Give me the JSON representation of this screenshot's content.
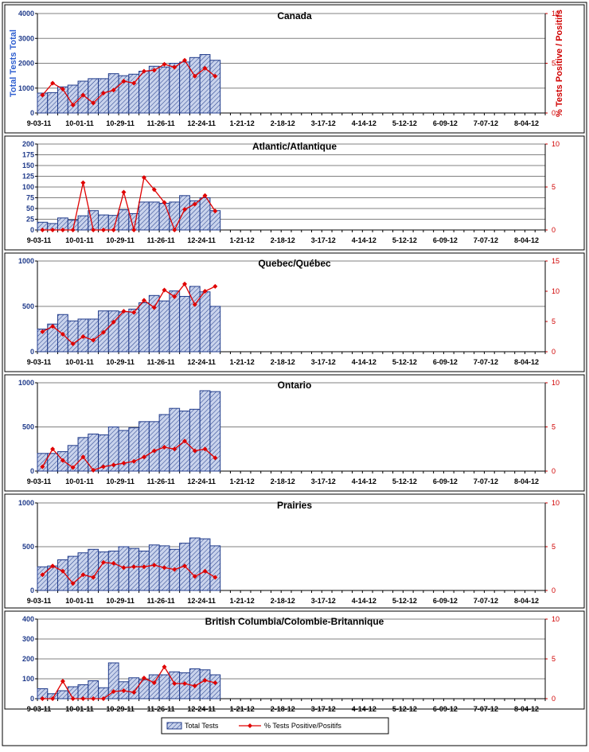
{
  "colors": {
    "bar_fill": "#c9d3ec",
    "bar_stroke": "#1f3a8a",
    "line": "#e00000",
    "left_axis_text": "#1f3a8a",
    "left_axis_title": "#2f5fd0",
    "right_axis": "#d00000"
  },
  "x_tick_labels": [
    "9-03-11",
    "10-01-11",
    "10-29-11",
    "11-26-11",
    "12-24-11",
    "1-21-12",
    "2-18-12",
    "3-17-12",
    "4-14-12",
    "5-12-12",
    "6-09-12",
    "7-07-12",
    "8-04-12"
  ],
  "legend": {
    "bars": "Total Tests",
    "line": "% Tests Positive/Positifs"
  },
  "chart_data": [
    {
      "type": "bar",
      "title": "Canada",
      "ylabel": "Total Tests Total",
      "y2label": "% Tests Positive / Positifs",
      "ylim": [
        0,
        4000
      ],
      "yticks": [
        0,
        1000,
        2000,
        3000,
        4000
      ],
      "y2lim": [
        0,
        10
      ],
      "y2ticks": [
        0,
        5,
        10
      ],
      "series": [
        {
          "name": "Total Tests",
          "kind": "bar",
          "axis": "left",
          "values": [
            800,
            820,
            1050,
            1120,
            1280,
            1380,
            1380,
            1580,
            1500,
            1560,
            1680,
            1880,
            1850,
            2000,
            2050,
            2230,
            2350,
            2120
          ]
        },
        {
          "name": "% Tests Positive/Positifs",
          "kind": "line",
          "axis": "right",
          "values": [
            1.8,
            3.0,
            2.4,
            0.8,
            1.8,
            1.0,
            2.0,
            2.3,
            3.2,
            3.0,
            4.2,
            4.3,
            4.9,
            4.6,
            5.3,
            3.7,
            4.5,
            3.7
          ]
        }
      ],
      "grid": true
    },
    {
      "type": "bar",
      "title": "Atlantic/Atlantique",
      "ylim": [
        0,
        200
      ],
      "yticks": [
        0,
        25,
        50,
        75,
        100,
        125,
        150,
        175,
        200
      ],
      "y2lim": [
        0,
        10
      ],
      "y2ticks": [
        0,
        5,
        10
      ],
      "series": [
        {
          "name": "Total Tests",
          "kind": "bar",
          "axis": "left",
          "values": [
            18,
            15,
            28,
            23,
            33,
            45,
            35,
            34,
            47,
            38,
            65,
            65,
            62,
            65,
            80,
            68,
            75,
            45
          ]
        },
        {
          "name": "% Tests Positive/Positifs",
          "kind": "line",
          "axis": "right",
          "values": [
            0,
            0,
            0,
            0,
            5.5,
            0,
            0,
            0,
            4.4,
            0,
            6.1,
            4.7,
            3.2,
            0,
            2.4,
            3.0,
            4.0,
            2.2
          ]
        }
      ],
      "grid": true
    },
    {
      "type": "bar",
      "title": "Quebec/Québec",
      "ylim": [
        0,
        1000
      ],
      "yticks": [
        0,
        500,
        1000
      ],
      "y2lim": [
        0,
        15
      ],
      "y2ticks": [
        0,
        5,
        10,
        15
      ],
      "series": [
        {
          "name": "Total Tests",
          "kind": "bar",
          "axis": "left",
          "values": [
            250,
            305,
            410,
            340,
            360,
            360,
            450,
            450,
            440,
            470,
            540,
            620,
            560,
            670,
            610,
            720,
            660,
            500
          ]
        },
        {
          "name": "% Tests Positive/Positifs",
          "kind": "line",
          "axis": "right",
          "values": [
            3.3,
            4.2,
            2.9,
            1.3,
            2.5,
            1.9,
            3.2,
            4.9,
            6.7,
            6.5,
            8.5,
            7.3,
            10.2,
            9.1,
            11.2,
            7.8,
            10.0,
            10.8
          ]
        }
      ],
      "grid": true
    },
    {
      "type": "bar",
      "title": "Ontario",
      "ylim": [
        0,
        1000
      ],
      "yticks": [
        0,
        500,
        1000
      ],
      "y2lim": [
        0,
        10
      ],
      "y2ticks": [
        0,
        5,
        10
      ],
      "series": [
        {
          "name": "Total Tests",
          "kind": "bar",
          "axis": "left",
          "values": [
            200,
            200,
            220,
            290,
            380,
            420,
            410,
            500,
            460,
            490,
            560,
            560,
            640,
            710,
            680,
            700,
            910,
            900
          ]
        },
        {
          "name": "% Tests Positive/Positifs",
          "kind": "line",
          "axis": "right",
          "values": [
            0.5,
            2.5,
            1.2,
            0.4,
            1.6,
            0.1,
            0.5,
            0.7,
            0.9,
            1.1,
            1.6,
            2.3,
            2.7,
            2.5,
            3.4,
            2.3,
            2.5,
            1.5
          ]
        }
      ],
      "grid": true
    },
    {
      "type": "bar",
      "title": "Prairies",
      "ylim": [
        0,
        1000
      ],
      "yticks": [
        0,
        500,
        1000
      ],
      "y2lim": [
        0,
        10
      ],
      "y2ticks": [
        0,
        5,
        10
      ],
      "series": [
        {
          "name": "Total Tests",
          "kind": "bar",
          "axis": "left",
          "values": [
            270,
            280,
            350,
            390,
            430,
            470,
            440,
            450,
            500,
            480,
            450,
            520,
            510,
            470,
            540,
            600,
            590,
            510
          ]
        },
        {
          "name": "% Tests Positive/Positifs",
          "kind": "line",
          "axis": "right",
          "values": [
            1.8,
            2.8,
            2.2,
            0.8,
            1.8,
            1.5,
            3.2,
            3.1,
            2.6,
            2.7,
            2.7,
            2.9,
            2.6,
            2.4,
            2.8,
            1.6,
            2.2,
            1.5
          ]
        }
      ],
      "grid": true
    },
    {
      "type": "bar",
      "title": "British Columbia/Colombie-Britannique",
      "ylim": [
        0,
        400
      ],
      "yticks": [
        0,
        100,
        200,
        300,
        400
      ],
      "y2lim": [
        0,
        10
      ],
      "y2ticks": [
        0,
        5,
        10
      ],
      "series": [
        {
          "name": "Total Tests",
          "kind": "bar",
          "axis": "left",
          "values": [
            50,
            25,
            40,
            60,
            70,
            90,
            55,
            180,
            85,
            105,
            95,
            120,
            120,
            135,
            130,
            150,
            145,
            120
          ]
        },
        {
          "name": "% Tests Positive/Positifs",
          "kind": "line",
          "axis": "right",
          "values": [
            0,
            0,
            2.2,
            0,
            0,
            0,
            0,
            0.9,
            1.0,
            0.8,
            2.6,
            2.0,
            4.0,
            1.9,
            1.9,
            1.6,
            2.3,
            2.0
          ]
        }
      ],
      "grid": true
    }
  ]
}
